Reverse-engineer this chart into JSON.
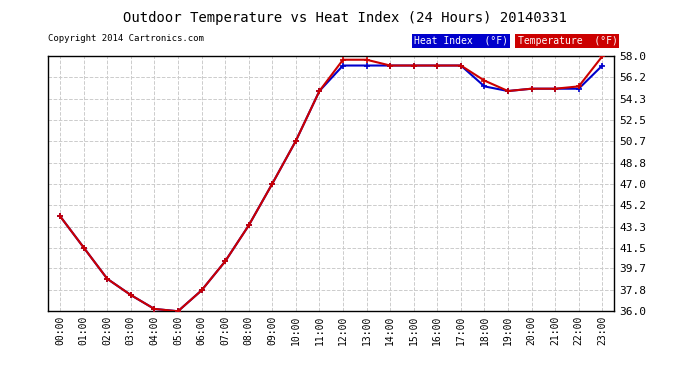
{
  "title": "Outdoor Temperature vs Heat Index (24 Hours) 20140331",
  "copyright": "Copyright 2014 Cartronics.com",
  "background_color": "#ffffff",
  "plot_bg_color": "#ffffff",
  "grid_color": "#cccccc",
  "hours": [
    "00:00",
    "01:00",
    "02:00",
    "03:00",
    "04:00",
    "05:00",
    "06:00",
    "07:00",
    "08:00",
    "09:00",
    "10:00",
    "11:00",
    "12:00",
    "13:00",
    "14:00",
    "15:00",
    "16:00",
    "17:00",
    "18:00",
    "19:00",
    "20:00",
    "21:00",
    "22:00",
    "23:00"
  ],
  "temperature": [
    44.2,
    41.5,
    38.8,
    37.4,
    36.2,
    36.0,
    37.8,
    40.3,
    43.4,
    47.0,
    50.7,
    55.0,
    57.7,
    57.7,
    57.2,
    57.2,
    57.2,
    57.2,
    55.9,
    55.0,
    55.2,
    55.2,
    55.4,
    58.0
  ],
  "heat_index": [
    44.2,
    41.5,
    38.8,
    37.4,
    36.2,
    36.0,
    37.8,
    40.3,
    43.4,
    47.0,
    50.7,
    55.0,
    57.2,
    57.2,
    57.2,
    57.2,
    57.2,
    57.2,
    55.4,
    55.0,
    55.2,
    55.2,
    55.2,
    57.2
  ],
  "temp_color": "#cc0000",
  "heat_index_color": "#0000cc",
  "ylim": [
    36.0,
    58.0
  ],
  "yticks": [
    36.0,
    37.8,
    39.7,
    41.5,
    43.3,
    45.2,
    47.0,
    48.8,
    50.7,
    52.5,
    54.3,
    56.2,
    58.0
  ],
  "legend_heat_label": "Heat Index  (°F)",
  "legend_temp_label": "Temperature  (°F)"
}
